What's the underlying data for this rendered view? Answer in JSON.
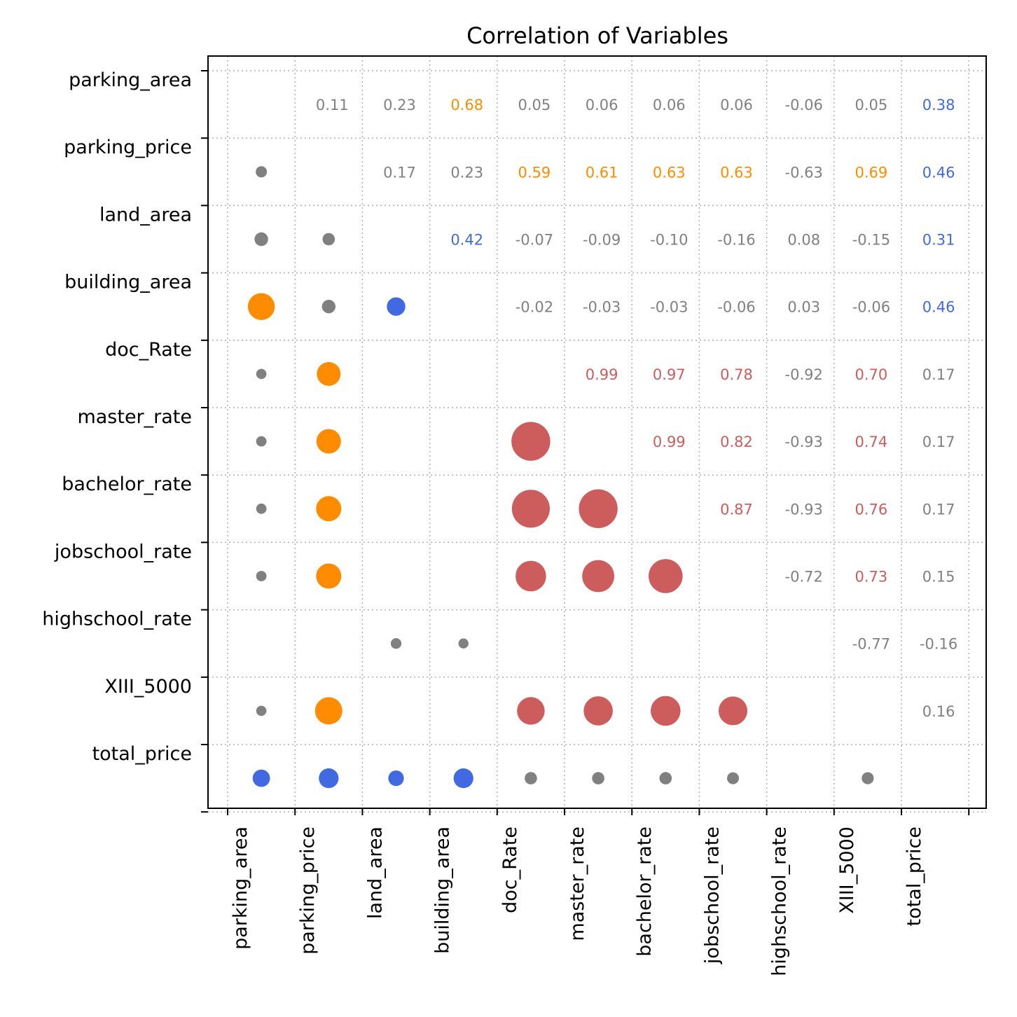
{
  "chart_data": {
    "type": "scatter",
    "title": "Correlation of Variables",
    "variables": [
      "parking_area",
      "parking_price",
      "land_area",
      "building_area",
      "doc_Rate",
      "master_rate",
      "bachelor_rate",
      "jobschool_rate",
      "highschool_rate",
      "XIII_5000",
      "total_price"
    ],
    "grid": true,
    "upper_triangle_labels": [
      {
        "row": 0,
        "col": 1,
        "label": "0.11",
        "color": "#808080"
      },
      {
        "row": 0,
        "col": 2,
        "label": "0.23",
        "color": "#808080"
      },
      {
        "row": 0,
        "col": 3,
        "label": "0.68",
        "color": "#ff8c00"
      },
      {
        "row": 0,
        "col": 4,
        "label": "0.05",
        "color": "#808080"
      },
      {
        "row": 0,
        "col": 5,
        "label": "0.06",
        "color": "#808080"
      },
      {
        "row": 0,
        "col": 6,
        "label": "0.06",
        "color": "#808080"
      },
      {
        "row": 0,
        "col": 7,
        "label": "0.06",
        "color": "#808080"
      },
      {
        "row": 0,
        "col": 8,
        "label": "-0.06",
        "color": "#808080"
      },
      {
        "row": 0,
        "col": 9,
        "label": "0.05",
        "color": "#808080"
      },
      {
        "row": 0,
        "col": 10,
        "label": "0.38",
        "color": "#4169e1"
      },
      {
        "row": 1,
        "col": 2,
        "label": "0.17",
        "color": "#808080"
      },
      {
        "row": 1,
        "col": 3,
        "label": "0.23",
        "color": "#808080"
      },
      {
        "row": 1,
        "col": 4,
        "label": "0.59",
        "color": "#ff8c00"
      },
      {
        "row": 1,
        "col": 5,
        "label": "0.61",
        "color": "#ff8c00"
      },
      {
        "row": 1,
        "col": 6,
        "label": "0.63",
        "color": "#ff8c00"
      },
      {
        "row": 1,
        "col": 7,
        "label": "0.63",
        "color": "#ff8c00"
      },
      {
        "row": 1,
        "col": 8,
        "label": "-0.63",
        "color": "#808080"
      },
      {
        "row": 1,
        "col": 9,
        "label": "0.69",
        "color": "#ff8c00"
      },
      {
        "row": 1,
        "col": 10,
        "label": "0.46",
        "color": "#4169e1"
      },
      {
        "row": 2,
        "col": 3,
        "label": "0.42",
        "color": "#4169e1"
      },
      {
        "row": 2,
        "col": 4,
        "label": "-0.07",
        "color": "#808080"
      },
      {
        "row": 2,
        "col": 5,
        "label": "-0.09",
        "color": "#808080"
      },
      {
        "row": 2,
        "col": 6,
        "label": "-0.10",
        "color": "#808080"
      },
      {
        "row": 2,
        "col": 7,
        "label": "-0.16",
        "color": "#808080"
      },
      {
        "row": 2,
        "col": 8,
        "label": "0.08",
        "color": "#808080"
      },
      {
        "row": 2,
        "col": 9,
        "label": "-0.15",
        "color": "#808080"
      },
      {
        "row": 2,
        "col": 10,
        "label": "0.31",
        "color": "#4169e1"
      },
      {
        "row": 3,
        "col": 4,
        "label": "-0.02",
        "color": "#808080"
      },
      {
        "row": 3,
        "col": 5,
        "label": "-0.03",
        "color": "#808080"
      },
      {
        "row": 3,
        "col": 6,
        "label": "-0.03",
        "color": "#808080"
      },
      {
        "row": 3,
        "col": 7,
        "label": "-0.06",
        "color": "#808080"
      },
      {
        "row": 3,
        "col": 8,
        "label": "0.03",
        "color": "#808080"
      },
      {
        "row": 3,
        "col": 9,
        "label": "-0.06",
        "color": "#808080"
      },
      {
        "row": 3,
        "col": 10,
        "label": "0.46",
        "color": "#4169e1"
      },
      {
        "row": 4,
        "col": 5,
        "label": "0.99",
        "color": "#cd5c5c"
      },
      {
        "row": 4,
        "col": 6,
        "label": "0.97",
        "color": "#cd5c5c"
      },
      {
        "row": 4,
        "col": 7,
        "label": "0.78",
        "color": "#cd5c5c"
      },
      {
        "row": 4,
        "col": 8,
        "label": "-0.92",
        "color": "#808080"
      },
      {
        "row": 4,
        "col": 9,
        "label": "0.70",
        "color": "#cd5c5c"
      },
      {
        "row": 4,
        "col": 10,
        "label": "0.17",
        "color": "#808080"
      },
      {
        "row": 5,
        "col": 6,
        "label": "0.99",
        "color": "#cd5c5c"
      },
      {
        "row": 5,
        "col": 7,
        "label": "0.82",
        "color": "#cd5c5c"
      },
      {
        "row": 5,
        "col": 8,
        "label": "-0.93",
        "color": "#808080"
      },
      {
        "row": 5,
        "col": 9,
        "label": "0.74",
        "color": "#cd5c5c"
      },
      {
        "row": 5,
        "col": 10,
        "label": "0.17",
        "color": "#808080"
      },
      {
        "row": 6,
        "col": 7,
        "label": "0.87",
        "color": "#cd5c5c"
      },
      {
        "row": 6,
        "col": 8,
        "label": "-0.93",
        "color": "#808080"
      },
      {
        "row": 6,
        "col": 9,
        "label": "0.76",
        "color": "#cd5c5c"
      },
      {
        "row": 6,
        "col": 10,
        "label": "0.17",
        "color": "#808080"
      },
      {
        "row": 7,
        "col": 8,
        "label": "-0.72",
        "color": "#808080"
      },
      {
        "row": 7,
        "col": 9,
        "label": "0.73",
        "color": "#cd5c5c"
      },
      {
        "row": 7,
        "col": 10,
        "label": "0.15",
        "color": "#808080"
      },
      {
        "row": 8,
        "col": 9,
        "label": "-0.77",
        "color": "#808080"
      },
      {
        "row": 8,
        "col": 10,
        "label": "-0.16",
        "color": "#808080"
      },
      {
        "row": 9,
        "col": 10,
        "label": "0.16",
        "color": "#808080"
      }
    ],
    "lower_triangle_markers": [
      {
        "row": 1,
        "col": 0,
        "value": 0.11,
        "color": "#808080"
      },
      {
        "row": 2,
        "col": 0,
        "value": 0.23,
        "color": "#808080"
      },
      {
        "row": 2,
        "col": 1,
        "value": 0.17,
        "color": "#808080"
      },
      {
        "row": 3,
        "col": 0,
        "value": 0.68,
        "color": "#ff8c00"
      },
      {
        "row": 3,
        "col": 1,
        "value": 0.23,
        "color": "#808080"
      },
      {
        "row": 3,
        "col": 2,
        "value": 0.42,
        "color": "#4169e1"
      },
      {
        "row": 4,
        "col": 0,
        "value": 0.05,
        "color": "#808080"
      },
      {
        "row": 4,
        "col": 1,
        "value": 0.59,
        "color": "#ff8c00"
      },
      {
        "row": 5,
        "col": 0,
        "value": 0.06,
        "color": "#808080"
      },
      {
        "row": 5,
        "col": 1,
        "value": 0.61,
        "color": "#ff8c00"
      },
      {
        "row": 5,
        "col": 4,
        "value": 0.99,
        "color": "#cd5c5c"
      },
      {
        "row": 6,
        "col": 0,
        "value": 0.06,
        "color": "#808080"
      },
      {
        "row": 6,
        "col": 1,
        "value": 0.63,
        "color": "#ff8c00"
      },
      {
        "row": 6,
        "col": 4,
        "value": 0.97,
        "color": "#cd5c5c"
      },
      {
        "row": 6,
        "col": 5,
        "value": 0.99,
        "color": "#cd5c5c"
      },
      {
        "row": 7,
        "col": 0,
        "value": 0.06,
        "color": "#808080"
      },
      {
        "row": 7,
        "col": 1,
        "value": 0.63,
        "color": "#ff8c00"
      },
      {
        "row": 7,
        "col": 4,
        "value": 0.78,
        "color": "#cd5c5c"
      },
      {
        "row": 7,
        "col": 5,
        "value": 0.82,
        "color": "#cd5c5c"
      },
      {
        "row": 7,
        "col": 6,
        "value": 0.87,
        "color": "#cd5c5c"
      },
      {
        "row": 8,
        "col": 2,
        "value": 0.08,
        "color": "#808080"
      },
      {
        "row": 8,
        "col": 3,
        "value": 0.03,
        "color": "#808080"
      },
      {
        "row": 9,
        "col": 0,
        "value": 0.05,
        "color": "#808080"
      },
      {
        "row": 9,
        "col": 1,
        "value": 0.69,
        "color": "#ff8c00"
      },
      {
        "row": 9,
        "col": 4,
        "value": 0.7,
        "color": "#cd5c5c"
      },
      {
        "row": 9,
        "col": 5,
        "value": 0.74,
        "color": "#cd5c5c"
      },
      {
        "row": 9,
        "col": 6,
        "value": 0.76,
        "color": "#cd5c5c"
      },
      {
        "row": 9,
        "col": 7,
        "value": 0.73,
        "color": "#cd5c5c"
      },
      {
        "row": 10,
        "col": 0,
        "value": 0.38,
        "color": "#4169e1"
      },
      {
        "row": 10,
        "col": 1,
        "value": 0.46,
        "color": "#4169e1"
      },
      {
        "row": 10,
        "col": 2,
        "value": 0.31,
        "color": "#4169e1"
      },
      {
        "row": 10,
        "col": 3,
        "value": 0.46,
        "color": "#4169e1"
      },
      {
        "row": 10,
        "col": 4,
        "value": 0.17,
        "color": "#808080"
      },
      {
        "row": 10,
        "col": 5,
        "value": 0.17,
        "color": "#808080"
      },
      {
        "row": 10,
        "col": 6,
        "value": 0.17,
        "color": "#808080"
      },
      {
        "row": 10,
        "col": 7,
        "value": 0.15,
        "color": "#808080"
      },
      {
        "row": 10,
        "col": 9,
        "value": 0.16,
        "color": "#808080"
      }
    ]
  }
}
